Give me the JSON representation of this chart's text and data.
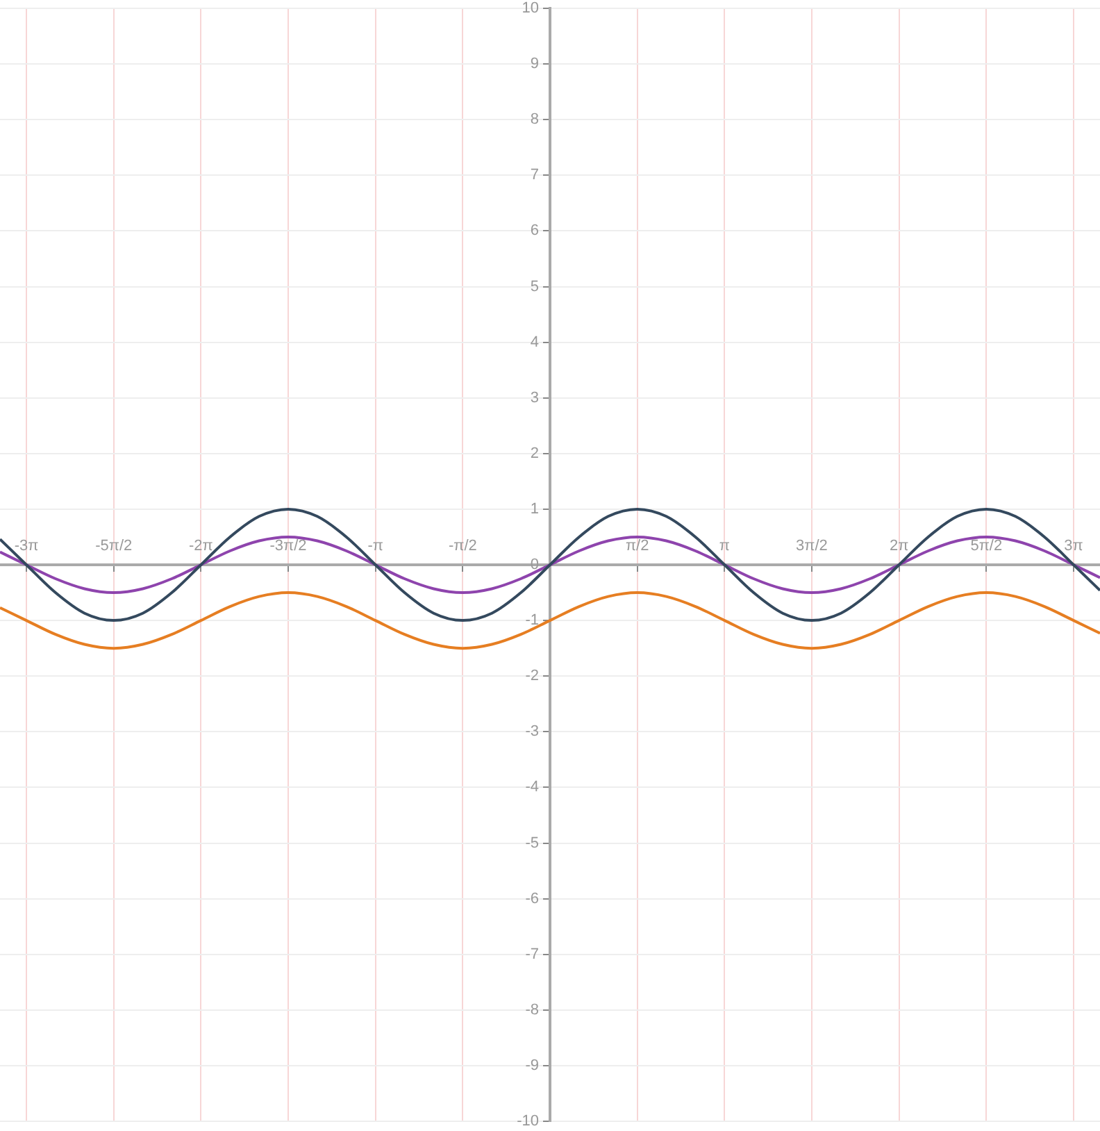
{
  "chart_data": {
    "type": "line",
    "x": [
      -9.9,
      -9.425,
      -8.901,
      -8.378,
      -7.854,
      -7.33,
      -6.807,
      -6.283,
      -5.76,
      -5.236,
      -4.712,
      -4.189,
      -3.665,
      -3.142,
      -2.618,
      -2.094,
      -1.571,
      -1.047,
      -0.524,
      0,
      0.524,
      1.047,
      1.571,
      2.094,
      2.618,
      3.142,
      3.665,
      4.189,
      4.712,
      5.236,
      5.76,
      6.283,
      6.807,
      7.33,
      7.854,
      8.378,
      8.901,
      9.425,
      9.9
    ],
    "series": [
      {
        "color": "#34495e",
        "values": [
          0.46,
          0,
          -0.5,
          -0.87,
          -1,
          -0.87,
          -0.5,
          0,
          0.5,
          0.87,
          1,
          0.87,
          0.5,
          0,
          -0.5,
          -0.87,
          -1,
          -0.87,
          -0.5,
          0,
          0.5,
          0.87,
          1,
          0.87,
          0.5,
          0,
          -0.5,
          -0.87,
          -1,
          -0.87,
          -0.5,
          0,
          0.5,
          0.87,
          1,
          0.87,
          0.5,
          0,
          -0.46
        ]
      },
      {
        "color": "#8e44ad",
        "values": [
          0.23,
          0,
          -0.25,
          -0.43,
          -0.5,
          -0.43,
          -0.25,
          0,
          0.25,
          0.43,
          0.5,
          0.43,
          0.25,
          0,
          -0.25,
          -0.43,
          -0.5,
          -0.43,
          -0.25,
          0,
          0.25,
          0.43,
          0.5,
          0.43,
          0.25,
          0,
          -0.25,
          -0.43,
          -0.5,
          -0.43,
          -0.25,
          0,
          0.25,
          0.43,
          0.5,
          0.43,
          0.25,
          0,
          -0.23
        ]
      },
      {
        "color": "#e67e22",
        "values": [
          -0.77,
          -1,
          -1.25,
          -1.43,
          -1.5,
          -1.43,
          -1.25,
          -1,
          -0.75,
          -0.57,
          -0.5,
          -0.57,
          -0.75,
          -1,
          -1.25,
          -1.43,
          -1.5,
          -1.43,
          -1.25,
          -1,
          -0.75,
          -0.57,
          -0.5,
          -0.57,
          -0.75,
          -1,
          -1.25,
          -1.43,
          -1.5,
          -1.43,
          -1.25,
          -1,
          -0.75,
          -0.57,
          -0.5,
          -0.57,
          -0.75,
          -1,
          -1.23
        ]
      }
    ],
    "xlim": [
      -9.9,
      9.9
    ],
    "ylim": [
      -10,
      10
    ],
    "xticks": [
      {
        "value": -9.425,
        "label": "-3π"
      },
      {
        "value": -7.854,
        "label": "-5π/2"
      },
      {
        "value": -6.283,
        "label": "-2π"
      },
      {
        "value": -4.712,
        "label": "-3π/2"
      },
      {
        "value": -3.142,
        "label": "-π"
      },
      {
        "value": -1.571,
        "label": "-π/2"
      },
      {
        "value": 1.571,
        "label": "π/2"
      },
      {
        "value": 3.142,
        "label": "π"
      },
      {
        "value": 4.712,
        "label": "3π/2"
      },
      {
        "value": 6.283,
        "label": "2π"
      },
      {
        "value": 7.854,
        "label": "5π/2"
      },
      {
        "value": 9.425,
        "label": "3π"
      }
    ],
    "yticks": [
      -10,
      -9,
      -8,
      -7,
      -6,
      -5,
      -4,
      -3,
      -2,
      -1,
      0,
      1,
      2,
      3,
      4,
      5,
      6,
      7,
      8,
      9,
      10
    ],
    "grid": true,
    "legend": false,
    "marker": "none",
    "line_style": "solid"
  }
}
